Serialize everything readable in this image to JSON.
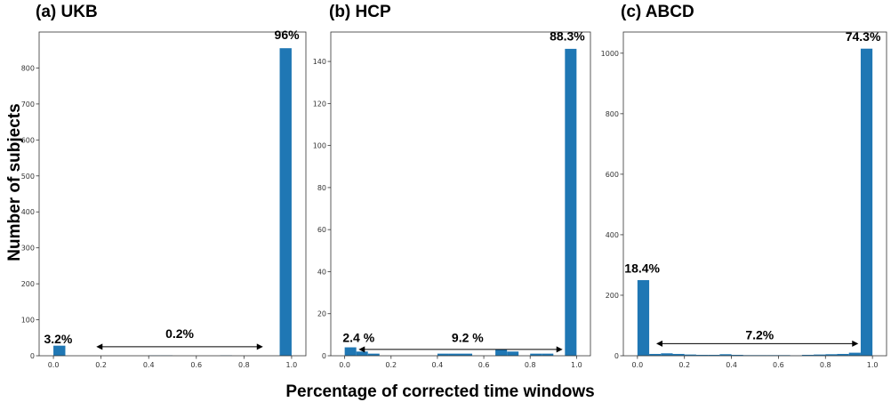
{
  "xlabel": "Percentage of corrected time windows",
  "ylabel": "Number of subjects",
  "chart_data": [
    {
      "type": "bar",
      "title": "(a) UKB",
      "bin_width": 0.05,
      "x": [
        0.0,
        0.05,
        0.1,
        0.15,
        0.2,
        0.25,
        0.3,
        0.35,
        0.4,
        0.45,
        0.5,
        0.55,
        0.6,
        0.65,
        0.7,
        0.75,
        0.8,
        0.85,
        0.9,
        0.95
      ],
      "values": [
        28,
        0,
        0,
        0,
        0,
        0,
        0,
        0,
        1,
        1,
        0,
        0,
        0,
        0,
        1,
        0,
        0,
        0,
        0,
        855
      ],
      "xlim": [
        -0.06,
        1.06
      ],
      "ylim": [
        0,
        900
      ],
      "xticks": [
        0.0,
        0.2,
        0.4,
        0.6,
        0.8,
        1.0
      ],
      "xtick_labels": [
        "0.0",
        "0.2",
        "0.4",
        "0.6",
        "0.8",
        "1.0"
      ],
      "yticks": [
        0,
        100,
        200,
        300,
        400,
        500,
        600,
        700,
        800
      ],
      "ytick_labels": [
        "0",
        "100",
        "200",
        "300",
        "400",
        "500",
        "600",
        "700",
        "800"
      ],
      "annotations": [
        {
          "text": "3.2%",
          "x": 0.02,
          "y": 35
        },
        {
          "text": "0.2%",
          "x": 0.53,
          "y": 50
        },
        {
          "text": "96%",
          "x": 0.98,
          "y": 880
        }
      ],
      "arrow": {
        "x1": 0.18,
        "x2": 0.88,
        "y": 25
      }
    },
    {
      "type": "bar",
      "title": "(b) HCP",
      "bin_width": 0.05,
      "x": [
        0.0,
        0.05,
        0.1,
        0.15,
        0.2,
        0.25,
        0.3,
        0.35,
        0.4,
        0.45,
        0.5,
        0.55,
        0.6,
        0.65,
        0.7,
        0.75,
        0.8,
        0.85,
        0.9,
        0.95
      ],
      "values": [
        4,
        2,
        1,
        0,
        0,
        0,
        0,
        0,
        1,
        1,
        1,
        0,
        0,
        3,
        2,
        0,
        1,
        1,
        0,
        146
      ],
      "xlim": [
        -0.06,
        1.06
      ],
      "ylim": [
        0,
        154
      ],
      "xticks": [
        0.0,
        0.2,
        0.4,
        0.6,
        0.8,
        1.0
      ],
      "xtick_labels": [
        "0.0",
        "0.2",
        "0.4",
        "0.6",
        "0.8",
        "1.0"
      ],
      "yticks": [
        0,
        20,
        40,
        60,
        80,
        100,
        120,
        140
      ],
      "ytick_labels": [
        "0",
        "20",
        "40",
        "60",
        "80",
        "100",
        "120",
        "140"
      ],
      "annotations": [
        {
          "text": "2.4 %",
          "x": 0.06,
          "y": 6.5
        },
        {
          "text": "9.2 %",
          "x": 0.53,
          "y": 6.5
        },
        {
          "text": "88.3%",
          "x": 0.96,
          "y": 150
        }
      ],
      "arrow": {
        "x1": 0.06,
        "x2": 0.94,
        "y": 3
      }
    },
    {
      "type": "bar",
      "title": "(c) ABCD",
      "bin_width": 0.05,
      "x": [
        0.0,
        0.05,
        0.1,
        0.15,
        0.2,
        0.25,
        0.3,
        0.35,
        0.4,
        0.45,
        0.5,
        0.55,
        0.6,
        0.65,
        0.7,
        0.75,
        0.8,
        0.85,
        0.9,
        0.95
      ],
      "values": [
        250,
        6,
        8,
        6,
        4,
        3,
        3,
        5,
        3,
        2,
        2,
        2,
        2,
        1,
        3,
        4,
        5,
        6,
        10,
        1015
      ],
      "xlim": [
        -0.06,
        1.06
      ],
      "ylim": [
        0,
        1070
      ],
      "xticks": [
        0.0,
        0.2,
        0.4,
        0.6,
        0.8,
        1.0
      ],
      "xtick_labels": [
        "0.0",
        "0.2",
        "0.4",
        "0.6",
        "0.8",
        "1.0"
      ],
      "yticks": [
        0,
        200,
        400,
        600,
        800,
        1000
      ],
      "ytick_labels": [
        "0",
        "200",
        "400",
        "600",
        "800",
        "1000"
      ],
      "annotations": [
        {
          "text": "18.4%",
          "x": 0.02,
          "y": 275
        },
        {
          "text": "7.2%",
          "x": 0.52,
          "y": 55
        },
        {
          "text": "74.3%",
          "x": 0.96,
          "y": 1040
        }
      ],
      "arrow": {
        "x1": 0.08,
        "x2": 0.94,
        "y": 40
      }
    }
  ]
}
